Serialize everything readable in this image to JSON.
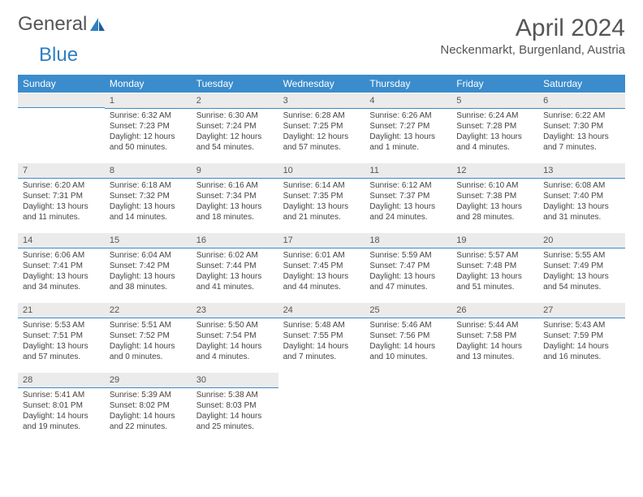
{
  "logo": {
    "part1": "General",
    "part2": "Blue"
  },
  "title": {
    "month": "April 2024",
    "location": "Neckenmarkt, Burgenland, Austria"
  },
  "colors": {
    "header_bg": "#3b8ccc",
    "header_text": "#ffffff",
    "daynum_bg": "#ebebeb",
    "daynum_border": "#3b8ccc",
    "body_text": "#444444",
    "title_text": "#555555",
    "logo_gray": "#555555",
    "logo_blue": "#2f7fc2"
  },
  "weekdays": [
    "Sunday",
    "Monday",
    "Tuesday",
    "Wednesday",
    "Thursday",
    "Friday",
    "Saturday"
  ],
  "first_weekday_offset": 1,
  "days": [
    {
      "n": "1",
      "sunrise": "Sunrise: 6:32 AM",
      "sunset": "Sunset: 7:23 PM",
      "daylight": "Daylight: 12 hours and 50 minutes."
    },
    {
      "n": "2",
      "sunrise": "Sunrise: 6:30 AM",
      "sunset": "Sunset: 7:24 PM",
      "daylight": "Daylight: 12 hours and 54 minutes."
    },
    {
      "n": "3",
      "sunrise": "Sunrise: 6:28 AM",
      "sunset": "Sunset: 7:25 PM",
      "daylight": "Daylight: 12 hours and 57 minutes."
    },
    {
      "n": "4",
      "sunrise": "Sunrise: 6:26 AM",
      "sunset": "Sunset: 7:27 PM",
      "daylight": "Daylight: 13 hours and 1 minute."
    },
    {
      "n": "5",
      "sunrise": "Sunrise: 6:24 AM",
      "sunset": "Sunset: 7:28 PM",
      "daylight": "Daylight: 13 hours and 4 minutes."
    },
    {
      "n": "6",
      "sunrise": "Sunrise: 6:22 AM",
      "sunset": "Sunset: 7:30 PM",
      "daylight": "Daylight: 13 hours and 7 minutes."
    },
    {
      "n": "7",
      "sunrise": "Sunrise: 6:20 AM",
      "sunset": "Sunset: 7:31 PM",
      "daylight": "Daylight: 13 hours and 11 minutes."
    },
    {
      "n": "8",
      "sunrise": "Sunrise: 6:18 AM",
      "sunset": "Sunset: 7:32 PM",
      "daylight": "Daylight: 13 hours and 14 minutes."
    },
    {
      "n": "9",
      "sunrise": "Sunrise: 6:16 AM",
      "sunset": "Sunset: 7:34 PM",
      "daylight": "Daylight: 13 hours and 18 minutes."
    },
    {
      "n": "10",
      "sunrise": "Sunrise: 6:14 AM",
      "sunset": "Sunset: 7:35 PM",
      "daylight": "Daylight: 13 hours and 21 minutes."
    },
    {
      "n": "11",
      "sunrise": "Sunrise: 6:12 AM",
      "sunset": "Sunset: 7:37 PM",
      "daylight": "Daylight: 13 hours and 24 minutes."
    },
    {
      "n": "12",
      "sunrise": "Sunrise: 6:10 AM",
      "sunset": "Sunset: 7:38 PM",
      "daylight": "Daylight: 13 hours and 28 minutes."
    },
    {
      "n": "13",
      "sunrise": "Sunrise: 6:08 AM",
      "sunset": "Sunset: 7:40 PM",
      "daylight": "Daylight: 13 hours and 31 minutes."
    },
    {
      "n": "14",
      "sunrise": "Sunrise: 6:06 AM",
      "sunset": "Sunset: 7:41 PM",
      "daylight": "Daylight: 13 hours and 34 minutes."
    },
    {
      "n": "15",
      "sunrise": "Sunrise: 6:04 AM",
      "sunset": "Sunset: 7:42 PM",
      "daylight": "Daylight: 13 hours and 38 minutes."
    },
    {
      "n": "16",
      "sunrise": "Sunrise: 6:02 AM",
      "sunset": "Sunset: 7:44 PM",
      "daylight": "Daylight: 13 hours and 41 minutes."
    },
    {
      "n": "17",
      "sunrise": "Sunrise: 6:01 AM",
      "sunset": "Sunset: 7:45 PM",
      "daylight": "Daylight: 13 hours and 44 minutes."
    },
    {
      "n": "18",
      "sunrise": "Sunrise: 5:59 AM",
      "sunset": "Sunset: 7:47 PM",
      "daylight": "Daylight: 13 hours and 47 minutes."
    },
    {
      "n": "19",
      "sunrise": "Sunrise: 5:57 AM",
      "sunset": "Sunset: 7:48 PM",
      "daylight": "Daylight: 13 hours and 51 minutes."
    },
    {
      "n": "20",
      "sunrise": "Sunrise: 5:55 AM",
      "sunset": "Sunset: 7:49 PM",
      "daylight": "Daylight: 13 hours and 54 minutes."
    },
    {
      "n": "21",
      "sunrise": "Sunrise: 5:53 AM",
      "sunset": "Sunset: 7:51 PM",
      "daylight": "Daylight: 13 hours and 57 minutes."
    },
    {
      "n": "22",
      "sunrise": "Sunrise: 5:51 AM",
      "sunset": "Sunset: 7:52 PM",
      "daylight": "Daylight: 14 hours and 0 minutes."
    },
    {
      "n": "23",
      "sunrise": "Sunrise: 5:50 AM",
      "sunset": "Sunset: 7:54 PM",
      "daylight": "Daylight: 14 hours and 4 minutes."
    },
    {
      "n": "24",
      "sunrise": "Sunrise: 5:48 AM",
      "sunset": "Sunset: 7:55 PM",
      "daylight": "Daylight: 14 hours and 7 minutes."
    },
    {
      "n": "25",
      "sunrise": "Sunrise: 5:46 AM",
      "sunset": "Sunset: 7:56 PM",
      "daylight": "Daylight: 14 hours and 10 minutes."
    },
    {
      "n": "26",
      "sunrise": "Sunrise: 5:44 AM",
      "sunset": "Sunset: 7:58 PM",
      "daylight": "Daylight: 14 hours and 13 minutes."
    },
    {
      "n": "27",
      "sunrise": "Sunrise: 5:43 AM",
      "sunset": "Sunset: 7:59 PM",
      "daylight": "Daylight: 14 hours and 16 minutes."
    },
    {
      "n": "28",
      "sunrise": "Sunrise: 5:41 AM",
      "sunset": "Sunset: 8:01 PM",
      "daylight": "Daylight: 14 hours and 19 minutes."
    },
    {
      "n": "29",
      "sunrise": "Sunrise: 5:39 AM",
      "sunset": "Sunset: 8:02 PM",
      "daylight": "Daylight: 14 hours and 22 minutes."
    },
    {
      "n": "30",
      "sunrise": "Sunrise: 5:38 AM",
      "sunset": "Sunset: 8:03 PM",
      "daylight": "Daylight: 14 hours and 25 minutes."
    }
  ]
}
